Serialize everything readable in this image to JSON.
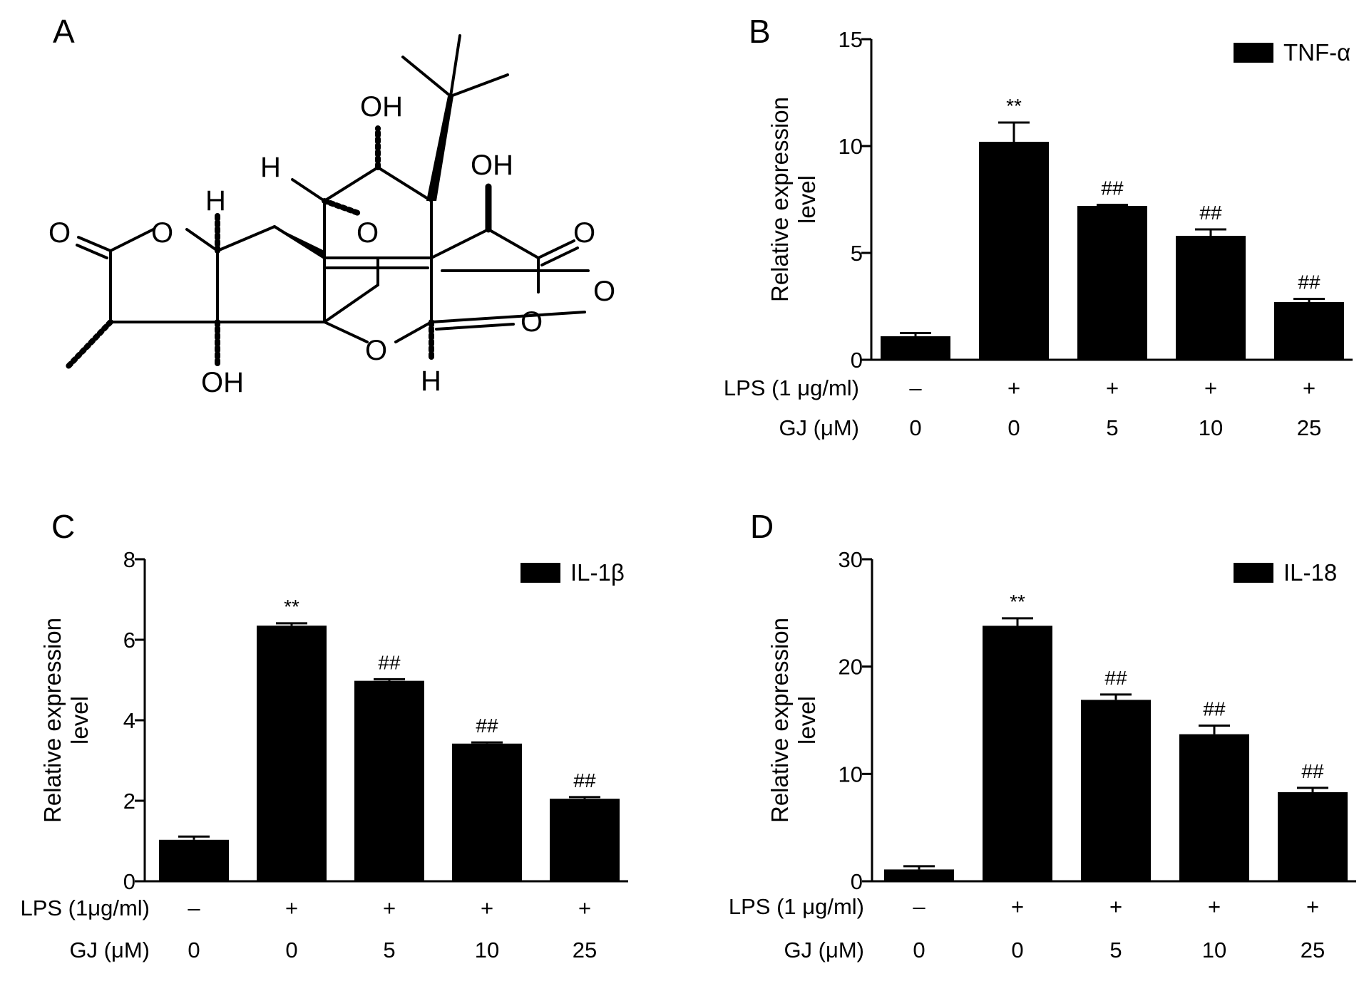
{
  "panels": [
    {
      "letter": "A"
    },
    {
      "letter": "B"
    },
    {
      "letter": "C"
    },
    {
      "letter": "D"
    }
  ],
  "molecule": {
    "atoms": [
      "O",
      "O",
      "H",
      "OH",
      "H",
      "OH",
      "O",
      "OH",
      "O",
      "O",
      "O",
      "O",
      "H"
    ]
  },
  "chart_data": [
    {
      "panel": "B",
      "type": "bar",
      "ylabel": [
        "Relative expression",
        "level"
      ],
      "ylim": [
        0,
        15
      ],
      "yticks": [
        0,
        5,
        10,
        15
      ],
      "legend": "TNF-α",
      "legend_position": "top-right",
      "condition_rows": [
        {
          "label": "LPS (1 μg/ml)",
          "values": [
            "–",
            "+",
            "+",
            "+",
            "+"
          ]
        },
        {
          "label": "GJ (μM)",
          "values": [
            "0",
            "0",
            "5",
            "10",
            "25"
          ]
        }
      ],
      "values": [
        1.1,
        10.2,
        7.2,
        5.8,
        2.7
      ],
      "errors": [
        0.15,
        0.9,
        0.05,
        0.3,
        0.15
      ],
      "significance": [
        "",
        "**",
        "##",
        "##",
        "##"
      ],
      "color": "#000000"
    },
    {
      "panel": "C",
      "type": "bar",
      "ylabel": [
        "Relative expression",
        "level"
      ],
      "ylim": [
        0,
        8
      ],
      "yticks": [
        0,
        2,
        4,
        6,
        8
      ],
      "legend": "IL-1β",
      "legend_position": "top-right",
      "condition_rows": [
        {
          "label": "LPS (1μg/ml)",
          "values": [
            "–",
            "+",
            "+",
            "+",
            "+"
          ]
        },
        {
          "label": "GJ (μM)",
          "values": [
            "0",
            "0",
            "5",
            "10",
            "25"
          ]
        }
      ],
      "values": [
        1.03,
        6.35,
        4.98,
        3.42,
        2.05
      ],
      "errors": [
        0.08,
        0.06,
        0.04,
        0.03,
        0.04
      ],
      "significance": [
        "",
        "**",
        "##",
        "##",
        "##"
      ],
      "color": "#000000"
    },
    {
      "panel": "D",
      "type": "bar",
      "ylabel": [
        "Relative expression",
        "level"
      ],
      "ylim": [
        0,
        30
      ],
      "yticks": [
        0,
        10,
        20,
        30
      ],
      "legend": "IL-18",
      "legend_position": "top-right",
      "condition_rows": [
        {
          "label": "LPS (1 μg/ml)",
          "values": [
            "–",
            "+",
            "+",
            "+",
            "+"
          ]
        },
        {
          "label": "GJ (μM)",
          "values": [
            "0",
            "0",
            "5",
            "10",
            "25"
          ]
        }
      ],
      "values": [
        1.1,
        23.8,
        16.9,
        13.7,
        8.3
      ],
      "errors": [
        0.3,
        0.7,
        0.5,
        0.8,
        0.4
      ],
      "significance": [
        "",
        "**",
        "##",
        "##",
        "##"
      ],
      "color": "#000000"
    }
  ]
}
